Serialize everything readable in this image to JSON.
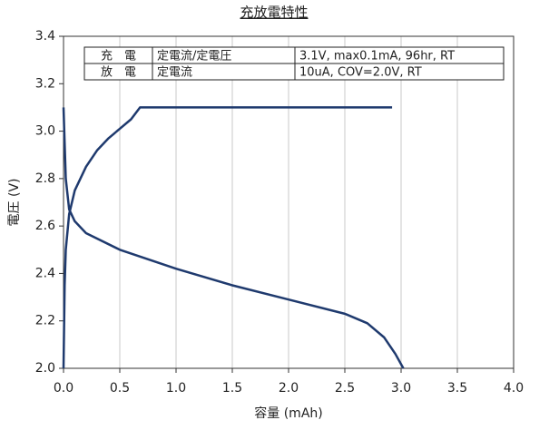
{
  "chart_data": {
    "type": "line",
    "title": "充放電特性",
    "xlabel": "容量 (mAh)",
    "ylabel": "電圧 (V)",
    "xlim": [
      0,
      4
    ],
    "ylim": [
      2.0,
      3.4
    ],
    "xticks": [
      {
        "value": 0,
        "label": "0.0"
      },
      {
        "value": 0.5,
        "label": "0.5"
      },
      {
        "value": 1,
        "label": "1.0"
      },
      {
        "value": 1.5,
        "label": "1.5"
      },
      {
        "value": 2,
        "label": "2.0"
      },
      {
        "value": 2.5,
        "label": "2.5"
      },
      {
        "value": 3,
        "label": "3.0"
      },
      {
        "value": 3.5,
        "label": "3.5"
      },
      {
        "value": 4,
        "label": "4.0"
      }
    ],
    "yticks": [
      {
        "value": 2,
        "label": "2.0"
      },
      {
        "value": 2.2,
        "label": "2.2"
      },
      {
        "value": 2.4,
        "label": "2.4"
      },
      {
        "value": 2.6,
        "label": "2.6"
      },
      {
        "value": 2.8,
        "label": "2.8"
      },
      {
        "value": 3,
        "label": "3.0"
      },
      {
        "value": 3.2,
        "label": "3.2"
      },
      {
        "value": 3.4,
        "label": "3.4"
      }
    ],
    "grid": "x",
    "series": [
      {
        "color": "#1f3a6e",
        "x": [
          0,
          0.01,
          0.02,
          0.05,
          0.1,
          0.2,
          0.3,
          0.4,
          0.5,
          0.6,
          0.68,
          0.75,
          1.0,
          2.0,
          2.92
        ],
        "values": [
          2.0,
          2.35,
          2.5,
          2.65,
          2.75,
          2.85,
          2.92,
          2.97,
          3.01,
          3.05,
          3.1,
          3.1,
          3.1,
          3.1,
          3.1
        ]
      },
      {
        "color": "#1f3a6e",
        "x": [
          0,
          0.01,
          0.02,
          0.05,
          0.1,
          0.2,
          0.5,
          1.0,
          1.5,
          2.0,
          2.5,
          2.7,
          2.85,
          2.95,
          3.02
        ],
        "values": [
          3.1,
          2.95,
          2.8,
          2.67,
          2.62,
          2.57,
          2.5,
          2.42,
          2.35,
          2.29,
          2.23,
          2.19,
          2.13,
          2.06,
          2.0
        ]
      }
    ]
  },
  "table": {
    "rows": [
      [
        "充　電",
        "定電流/定電圧",
        "3.1V, max0.1mA, 96hr, RT"
      ],
      [
        "放　電",
        "定電流",
        "10uA,  COV=2.0V, RT"
      ]
    ]
  }
}
